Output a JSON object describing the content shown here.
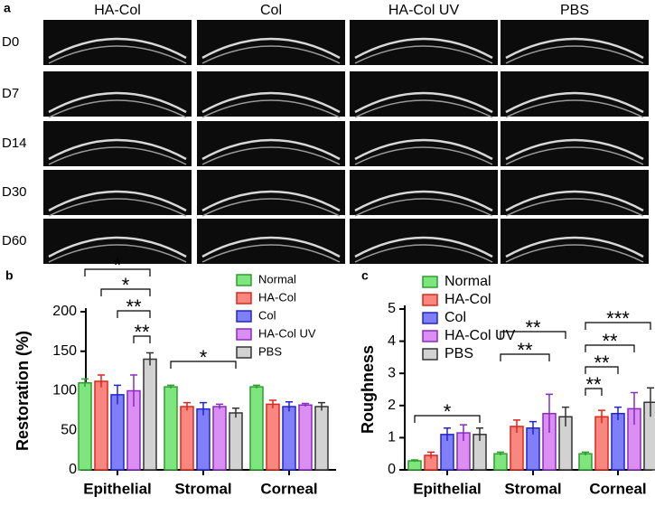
{
  "panel_a": {
    "label": "a",
    "columns": [
      "HA-Col",
      "Col",
      "HA-Col UV",
      "PBS"
    ],
    "rows": [
      "D0",
      "D7",
      "D14",
      "D30",
      "D60"
    ]
  },
  "chart_data": [
    {
      "type": "bar",
      "panel_label": "b",
      "y_label": "Restoration (%)",
      "categories": [
        "Epithelial",
        "Stromal",
        "Corneal"
      ],
      "series": [
        {
          "name": "Normal",
          "color": "#7fe67f",
          "edgecolor": "#2e9e2e",
          "values": [
            110,
            105,
            105
          ],
          "errors": [
            5,
            2,
            2
          ]
        },
        {
          "name": "HA-Col",
          "color": "#f7877f",
          "edgecolor": "#e0251b",
          "values": [
            112,
            80,
            83
          ],
          "errors": [
            8,
            5,
            5
          ]
        },
        {
          "name": "Col",
          "color": "#7f7ff7",
          "edgecolor": "#2323d0",
          "values": [
            95,
            77,
            80
          ],
          "errors": [
            12,
            8,
            6
          ]
        },
        {
          "name": "HA-Col UV",
          "color": "#dc8ff2",
          "edgecolor": "#8a2bc0",
          "values": [
            100,
            80,
            82
          ],
          "errors": [
            20,
            3,
            2
          ]
        },
        {
          "name": "PBS",
          "color": "#d2d2d2",
          "edgecolor": "#333333",
          "values": [
            140,
            72,
            80
          ],
          "errors": [
            8,
            6,
            5
          ]
        }
      ],
      "ylim": [
        0,
        200
      ],
      "yticks": [
        0,
        50,
        100,
        150,
        200
      ],
      "annotations": [
        "*",
        "*",
        "**",
        "**",
        "*"
      ]
    },
    {
      "type": "bar",
      "panel_label": "c",
      "y_label": "Roughness",
      "categories": [
        "Epithelial",
        "Stromal",
        "Corneal"
      ],
      "series": [
        {
          "name": "Normal",
          "color": "#7fe67f",
          "edgecolor": "#2e9e2e",
          "values": [
            0.28,
            0.5,
            0.5
          ],
          "errors": [
            0.03,
            0.05,
            0.05
          ]
        },
        {
          "name": "HA-Col",
          "color": "#f7877f",
          "edgecolor": "#e0251b",
          "values": [
            0.45,
            1.35,
            1.65
          ],
          "errors": [
            0.1,
            0.2,
            0.2
          ]
        },
        {
          "name": "Col",
          "color": "#7f7ff7",
          "edgecolor": "#2323d0",
          "values": [
            1.1,
            1.3,
            1.75
          ],
          "errors": [
            0.2,
            0.2,
            0.2
          ]
        },
        {
          "name": "HA-Col UV",
          "color": "#dc8ff2",
          "edgecolor": "#8a2bc0",
          "values": [
            1.15,
            1.75,
            1.9
          ],
          "errors": [
            0.25,
            0.6,
            0.5
          ]
        },
        {
          "name": "PBS",
          "color": "#d2d2d2",
          "edgecolor": "#333333",
          "values": [
            1.1,
            1.65,
            2.1
          ],
          "errors": [
            0.2,
            0.3,
            0.45
          ]
        }
      ],
      "ylim": [
        0,
        5
      ],
      "yticks": [
        0,
        1,
        2,
        3,
        4,
        5
      ],
      "annotations": [
        "*",
        "**",
        "**",
        "***",
        "**",
        "**",
        "**"
      ]
    }
  ]
}
